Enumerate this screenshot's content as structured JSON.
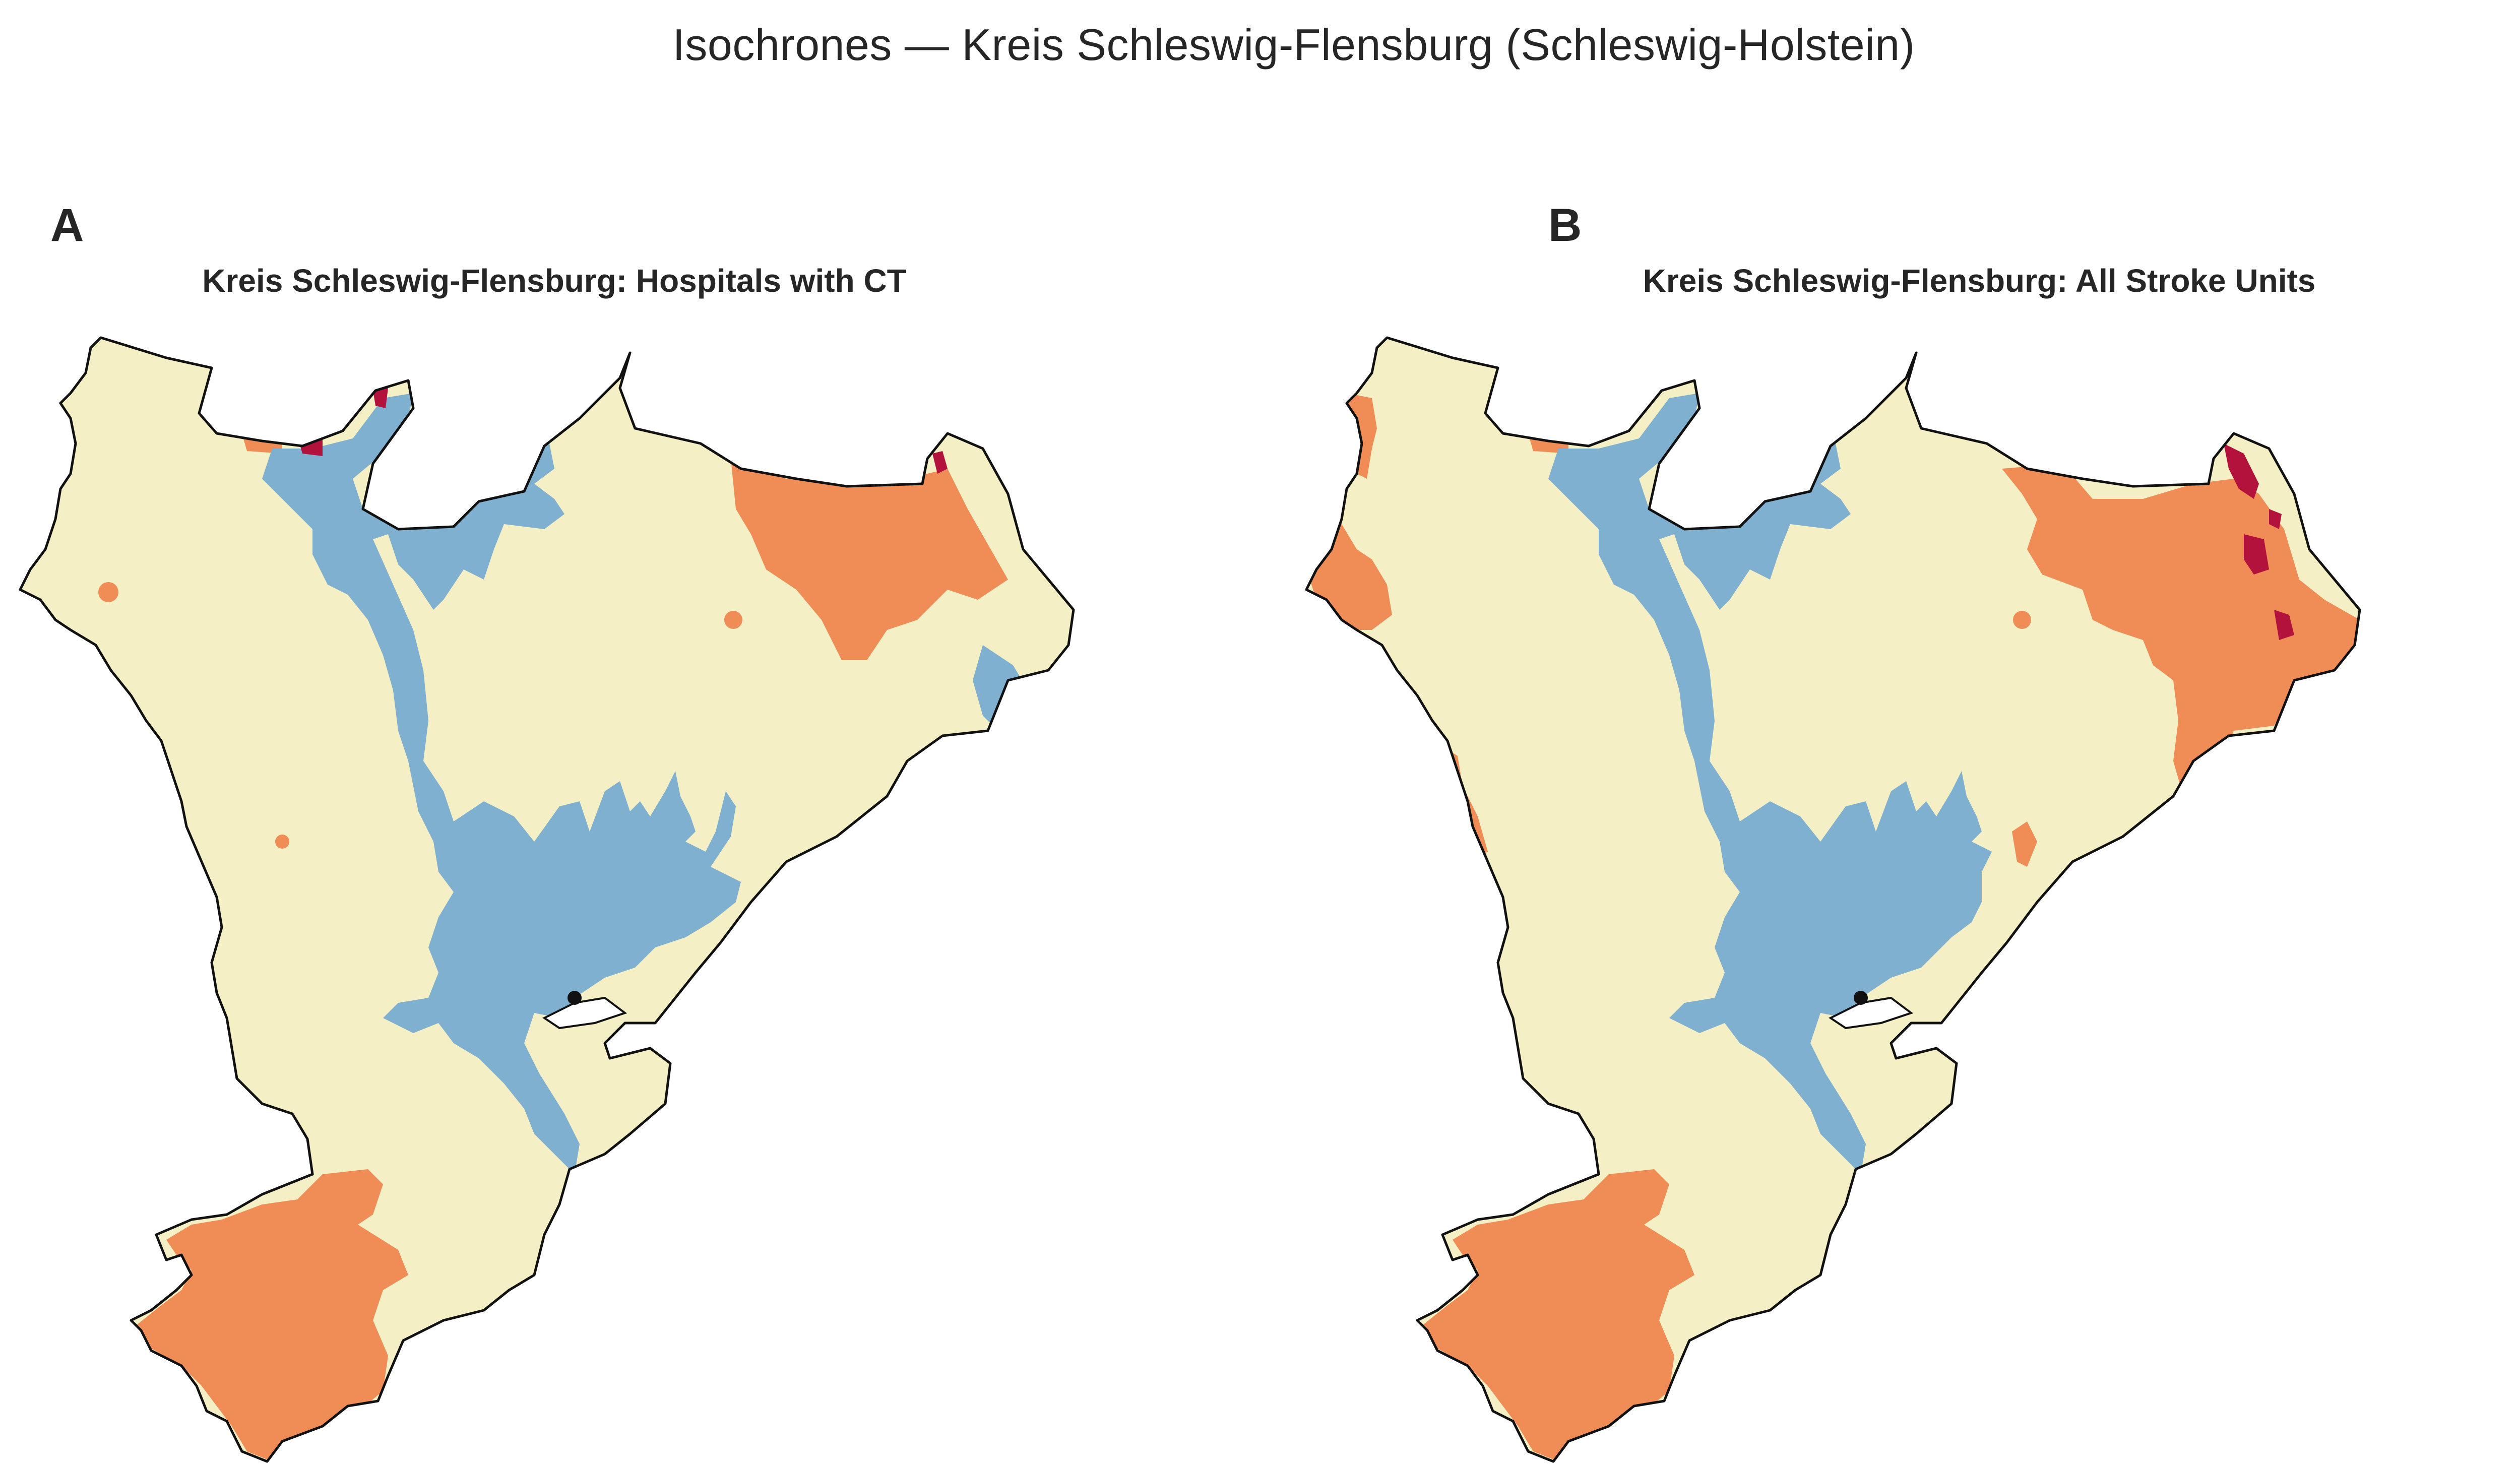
{
  "suptitle": "Isochrones — Kreis Schleswig-Flensburg (Schleswig-Holstein)",
  "palette": {
    "zone_1": "#80b0d0",
    "zone_2": "#f4efc4",
    "zone_3": "#f08c55",
    "zone_4": "#b2123b",
    "outline": "#111111",
    "marker": "#111111"
  },
  "panels": [
    {
      "label": "A",
      "title": "Kreis Schleswig-Flensburg: Hospitals with CT",
      "facility_marker": "black-dot"
    },
    {
      "label": "B",
      "title": "Kreis Schleswig-Flensburg: All Stroke Units",
      "facility_marker": "black-dot"
    }
  ]
}
